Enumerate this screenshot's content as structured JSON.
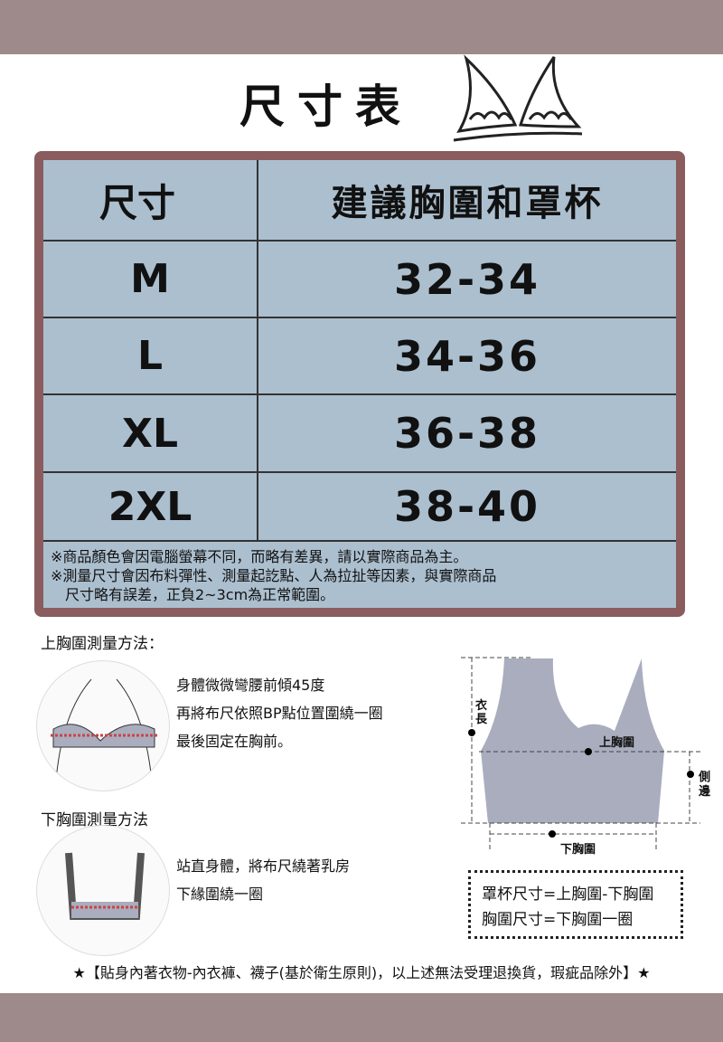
{
  "title": "尺寸表",
  "table": {
    "headers": [
      "尺寸",
      "建議胸圍和罩杯"
    ],
    "rows": [
      [
        "M",
        "32-34"
      ],
      [
        "L",
        "34-36"
      ],
      [
        "XL",
        "36-38"
      ],
      [
        "2XL",
        "38-40"
      ]
    ],
    "notes": [
      "※商品顏色會因電腦螢幕不同，而略有差異，請以實際商品為主。",
      "※測量尺寸會因布料彈性、測量起訖點、人為拉扯等因素，與實際商品",
      "　尺寸略有誤差，正負2~3cm為正常範圍。"
    ]
  },
  "upper": {
    "heading": "上胸圍測量方法：",
    "steps": [
      "身體微微彎腰前傾45度",
      "再將布尺依照BP點位置圍繞一圈",
      "最後固定在胸前。"
    ]
  },
  "lower": {
    "heading": "下胸圍測量方法",
    "steps": [
      "站直身體，將布尺繞著乳房",
      "下緣圍繞一圈"
    ]
  },
  "diagram": {
    "length": "衣長",
    "upper_bust": "上胸圍",
    "side": "側邊",
    "under_bust": "下胸圍"
  },
  "formula": [
    "罩杯尺寸=上胸圍-下胸圍",
    "胸圍尺寸=下胸圍一圈"
  ],
  "footer": "★【貼身內著衣物-內衣褲、襪子(基於衛生原則)，以上述無法受理退換貨，瑕疵品除外】★",
  "colors": {
    "band": "#9e8a8b",
    "frame": "#8b5c5d",
    "table": "#acbfcf",
    "garment": "#a9adbe"
  }
}
